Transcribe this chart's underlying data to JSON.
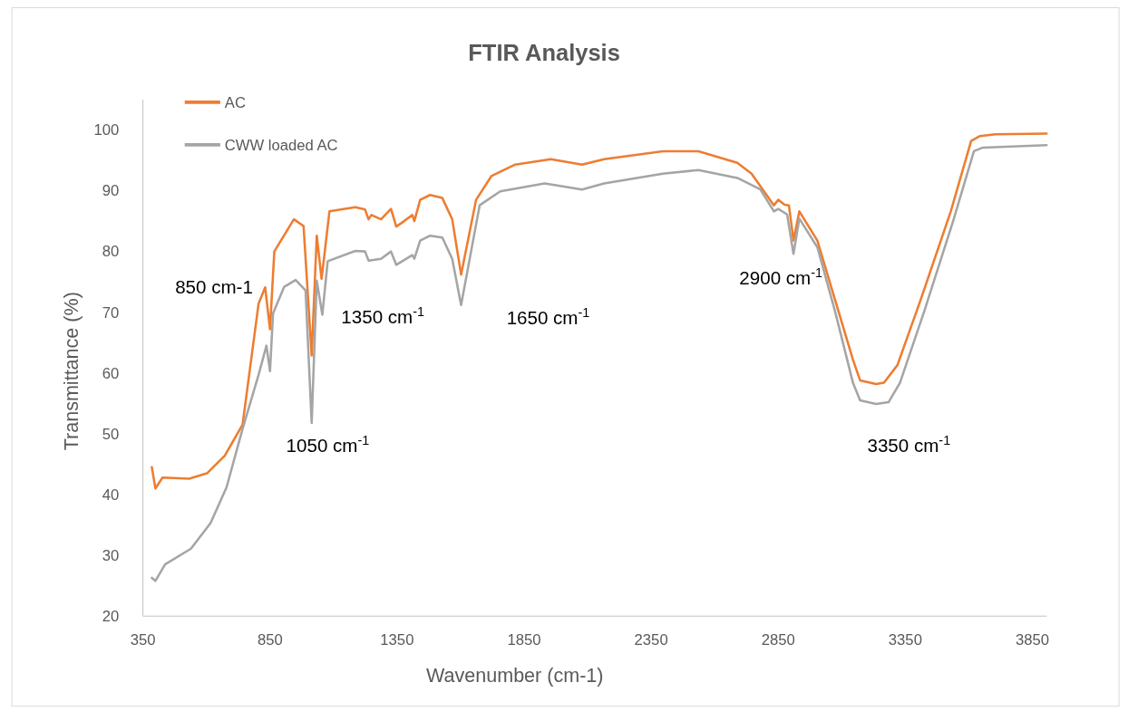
{
  "chart_data": {
    "type": "line",
    "title": "FTIR Analysis",
    "xlabel": "Wavenumber (cm-1)",
    "ylabel": "Transmittance (%)",
    "xlim": [
      350,
      3906
    ],
    "ylim": [
      20,
      105
    ],
    "xticks": [
      350,
      850,
      1350,
      1850,
      2350,
      2850,
      3350,
      3850
    ],
    "yticks": [
      20,
      30,
      40,
      50,
      60,
      70,
      80,
      90,
      100
    ],
    "grid": false,
    "legend": "top left",
    "marker": "none",
    "line_style": "solid",
    "series": [
      {
        "name": "AC",
        "color": "#ed7d31",
        "x": [
          385,
          399,
          427,
          532,
          602,
          672,
          742,
          805,
          831,
          850,
          867,
          944,
          982,
          1014,
          1034,
          1053,
          1084,
          1186,
          1224,
          1238,
          1249,
          1287,
          1326,
          1347,
          1378,
          1410,
          1418,
          1441,
          1480,
          1528,
          1567,
          1602,
          1661,
          1721,
          1815,
          1955,
          2078,
          2165,
          2396,
          2536,
          2689,
          2745,
          2794,
          2833,
          2850,
          2875,
          2892,
          2910,
          2933,
          3004,
          3074,
          3144,
          3172,
          3235,
          3266,
          3319,
          3410,
          3529,
          3609,
          3644,
          3704,
          3906
        ],
        "values": [
          44.5,
          41,
          42.8,
          42.6,
          43.5,
          46.4,
          51.5,
          71.4,
          74.1,
          67.2,
          80,
          85.3,
          84.2,
          62.9,
          82.6,
          75.5,
          86.6,
          87.3,
          86.9,
          85.3,
          86,
          85.3,
          87,
          84.1,
          85,
          86,
          85,
          88.5,
          89.3,
          88.8,
          85.3,
          76.2,
          88.5,
          92.4,
          94.3,
          95.2,
          94.3,
          95.2,
          96.5,
          96.5,
          94.6,
          92.8,
          89.9,
          87.6,
          88.5,
          87.7,
          87.6,
          81.8,
          86.6,
          81.8,
          72,
          62.2,
          58.8,
          58.2,
          58.4,
          61.3,
          72,
          86.6,
          98.2,
          99,
          99.3,
          99.4
        ]
      },
      {
        "name": "CWW loaded AC",
        "color": "#a5a5a5",
        "x": [
          385,
          399,
          437,
          539,
          616,
          679,
          742,
          805,
          836,
          850,
          862,
          906,
          951,
          990,
          1014,
          1034,
          1056,
          1077,
          1186,
          1224,
          1238,
          1287,
          1326,
          1347,
          1410,
          1418,
          1441,
          1480,
          1528,
          1567,
          1602,
          1675,
          1756,
          1931,
          2078,
          2165,
          2396,
          2536,
          2689,
          2780,
          2833,
          2850,
          2885,
          2910,
          2933,
          3004,
          3074,
          3144,
          3172,
          3235,
          3284,
          3329,
          3424,
          3539,
          3620,
          3655,
          3906
        ],
        "values": [
          26.3,
          25.8,
          28.5,
          31.1,
          35.3,
          41.2,
          50.8,
          59.7,
          64.5,
          60.3,
          69.8,
          74.2,
          75.3,
          73.6,
          51.8,
          75.2,
          69.6,
          78.4,
          80.1,
          80,
          78.5,
          78.8,
          80,
          77.8,
          79.4,
          78.8,
          81.8,
          82.6,
          82.3,
          78.8,
          71.2,
          87.6,
          89.9,
          91.2,
          90.2,
          91.2,
          92.8,
          93.4,
          92.1,
          90.2,
          86.6,
          87,
          86.1,
          79.6,
          85.4,
          80.7,
          70.1,
          58.4,
          55.5,
          54.9,
          55.2,
          58.4,
          70.1,
          85.1,
          96.5,
          97.1,
          97.5
        ]
      }
    ],
    "annotations": [
      "850 cm-1",
      "1050 cm$^{-1}$",
      "1350 cm$^{-1}$",
      "1650 cm$^{-1}$",
      "2900 cm$^{-1}$",
      "3350 cm$^{-1}$"
    ]
  }
}
